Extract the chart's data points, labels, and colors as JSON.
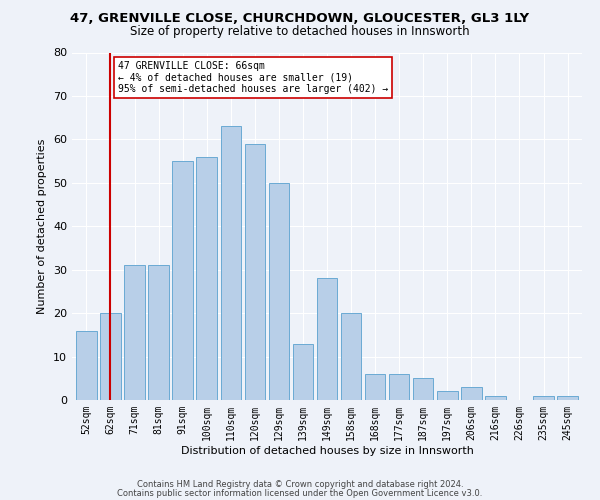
{
  "title1": "47, GRENVILLE CLOSE, CHURCHDOWN, GLOUCESTER, GL3 1LY",
  "title2": "Size of property relative to detached houses in Innsworth",
  "xlabel": "Distribution of detached houses by size in Innsworth",
  "ylabel": "Number of detached properties",
  "bar_labels": [
    "52sqm",
    "62sqm",
    "71sqm",
    "81sqm",
    "91sqm",
    "100sqm",
    "110sqm",
    "120sqm",
    "129sqm",
    "139sqm",
    "149sqm",
    "158sqm",
    "168sqm",
    "177sqm",
    "187sqm",
    "197sqm",
    "206sqm",
    "216sqm",
    "226sqm",
    "235sqm",
    "245sqm"
  ],
  "bar_values": [
    16,
    20,
    31,
    31,
    55,
    56,
    63,
    59,
    50,
    13,
    28,
    20,
    6,
    6,
    5,
    2,
    3,
    1,
    0,
    1,
    1
  ],
  "bar_color": "#b8cfe8",
  "bar_edgecolor": "#6aaad4",
  "vline_x": 1,
  "vline_color": "#cc0000",
  "annotation_text": "47 GRENVILLE CLOSE: 66sqm\n← 4% of detached houses are smaller (19)\n95% of semi-detached houses are larger (402) →",
  "annotation_box_edgecolor": "#cc0000",
  "annotation_box_facecolor": "#ffffff",
  "ylim": [
    0,
    80
  ],
  "yticks": [
    0,
    10,
    20,
    30,
    40,
    50,
    60,
    70,
    80
  ],
  "footer1": "Contains HM Land Registry data © Crown copyright and database right 2024.",
  "footer2": "Contains public sector information licensed under the Open Government Licence v3.0.",
  "background_color": "#eef2f9",
  "plot_background": "#eef2f9"
}
